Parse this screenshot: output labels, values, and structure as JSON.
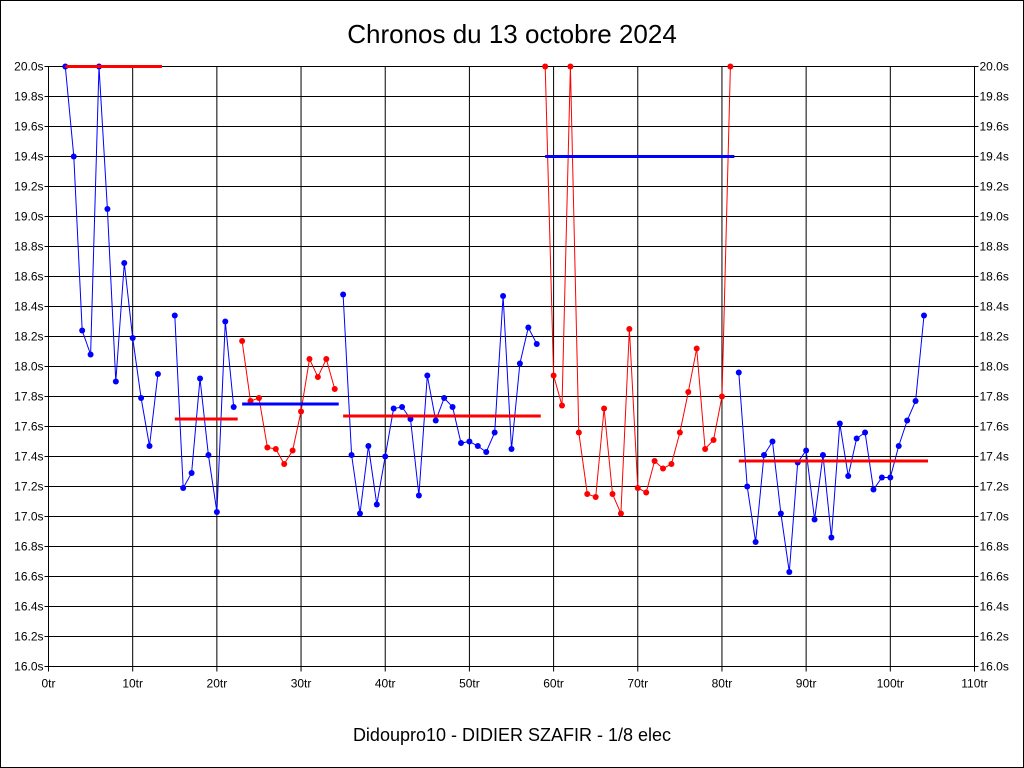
{
  "chart_data": {
    "type": "line",
    "title": "Chronos du 13 octobre 2024",
    "xlabel": "Didoupro10 - DIDIER SZAFIR - 1/8 elec",
    "ylabel": "",
    "xlim": [
      0,
      110
    ],
    "ylim": [
      16.0,
      20.0
    ],
    "grid": true,
    "x_ticks": [
      0,
      10,
      20,
      30,
      40,
      50,
      60,
      70,
      80,
      90,
      100,
      110
    ],
    "x_tick_labels": [
      "0tr",
      "10tr",
      "20tr",
      "30tr",
      "40tr",
      "50tr",
      "60tr",
      "70tr",
      "80tr",
      "90tr",
      "100tr",
      "110tr"
    ],
    "y_ticks": [
      16.0,
      16.2,
      16.4,
      16.6,
      16.8,
      17.0,
      17.2,
      17.4,
      17.6,
      17.8,
      18.0,
      18.2,
      18.4,
      18.6,
      18.8,
      19.0,
      19.2,
      19.4,
      19.6,
      19.8,
      20.0
    ],
    "y_tick_labels": [
      "16.0s",
      "16.2s",
      "16.4s",
      "16.6s",
      "16.8s",
      "17.0s",
      "17.2s",
      "17.4s",
      "17.6s",
      "17.8s",
      "18.0s",
      "18.2s",
      "18.4s",
      "18.6s",
      "18.8s",
      "19.0s",
      "19.2s",
      "19.4s",
      "19.6s",
      "19.8s",
      "20.0s"
    ],
    "series": [
      {
        "color": "#0000ff",
        "x": [
          2,
          3,
          4,
          5,
          6,
          7,
          8,
          9,
          10,
          11,
          12,
          13
        ],
        "y": [
          20.0,
          19.4,
          18.24,
          18.08,
          20.0,
          19.05,
          17.9,
          18.69,
          18.19,
          17.79,
          17.47,
          17.95
        ]
      },
      {
        "color": "#0000ff",
        "x": [
          15,
          16,
          17,
          18,
          19,
          20,
          21,
          22
        ],
        "y": [
          18.34,
          17.19,
          17.29,
          17.92,
          17.41,
          17.03,
          18.3,
          17.73
        ]
      },
      {
        "color": "#ff0000",
        "x": [
          23,
          24,
          25,
          26,
          27,
          28,
          29,
          30,
          31,
          32,
          33,
          34
        ],
        "y": [
          18.17,
          17.77,
          17.79,
          17.46,
          17.45,
          17.35,
          17.44,
          17.7,
          18.05,
          17.93,
          18.05,
          17.85
        ]
      },
      {
        "color": "#0000ff",
        "x": [
          35,
          36,
          37,
          38,
          39,
          40,
          41,
          42,
          43,
          44,
          45,
          46,
          47,
          48,
          49,
          50,
          51,
          52,
          53,
          54,
          55,
          56,
          57,
          58
        ],
        "y": [
          18.48,
          17.41,
          17.02,
          17.47,
          17.08,
          17.4,
          17.72,
          17.73,
          17.65,
          17.14,
          17.94,
          17.64,
          17.79,
          17.73,
          17.49,
          17.5,
          17.47,
          17.43,
          17.56,
          18.47,
          17.45,
          18.02,
          18.26,
          18.15
        ]
      },
      {
        "color": "#ff0000",
        "x": [
          59,
          60,
          61,
          62,
          63,
          64,
          65,
          66,
          67,
          68,
          69,
          70,
          71,
          72,
          73,
          74,
          75,
          76,
          77,
          78,
          79,
          80,
          81
        ],
        "y": [
          20.0,
          17.94,
          17.74,
          20.0,
          17.56,
          17.15,
          17.13,
          17.72,
          17.15,
          17.02,
          18.25,
          17.19,
          17.16,
          17.37,
          17.32,
          17.35,
          17.56,
          17.83,
          18.12,
          17.45,
          17.51,
          17.8,
          20.0
        ]
      },
      {
        "color": "#0000ff",
        "x": [
          82,
          83,
          84,
          85,
          86,
          87,
          88,
          89,
          90,
          91,
          92,
          93,
          94,
          95,
          96,
          97,
          98,
          99,
          100,
          101,
          102,
          103,
          104
        ],
        "y": [
          17.96,
          17.2,
          16.83,
          17.41,
          17.5,
          17.02,
          16.63,
          17.36,
          17.44,
          16.98,
          17.41,
          16.86,
          17.62,
          17.27,
          17.52,
          17.56,
          17.18,
          17.26,
          17.26,
          17.47,
          17.64,
          17.77,
          18.34
        ]
      }
    ],
    "averages": [
      {
        "color": "#ff0000",
        "x_start": 2,
        "x_end": 13,
        "y": 20.0
      },
      {
        "color": "#ff0000",
        "x_start": 15,
        "x_end": 22,
        "y": 17.65
      },
      {
        "color": "#0000ff",
        "x_start": 23,
        "x_end": 34,
        "y": 17.75
      },
      {
        "color": "#ff0000",
        "x_start": 35,
        "x_end": 58,
        "y": 17.67
      },
      {
        "color": "#0000ff",
        "x_start": 59,
        "x_end": 81,
        "y": 19.4
      },
      {
        "color": "#ff0000",
        "x_start": 82,
        "x_end": 104,
        "y": 17.37
      }
    ]
  }
}
